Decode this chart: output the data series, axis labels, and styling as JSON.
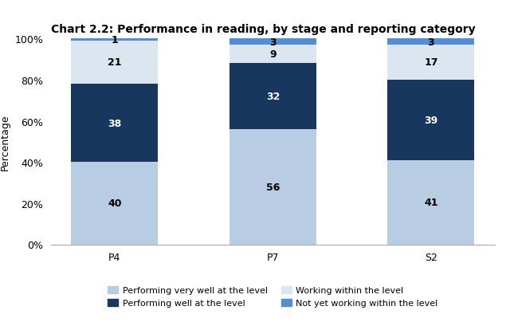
{
  "title": "Chart 2.2: Performance in reading, by stage and reporting category",
  "categories": [
    "P4",
    "P7",
    "S2"
  ],
  "segments": {
    "performing_very_well": [
      40,
      56,
      41
    ],
    "performing_well": [
      38,
      32,
      39
    ],
    "working_within": [
      21,
      9,
      17
    ],
    "not_yet_working": [
      1,
      3,
      3
    ]
  },
  "colors": {
    "performing_very_well": "#b8cce4",
    "performing_well": "#17375e",
    "working_within": "#dce6f1",
    "not_yet_working": "#538dd5"
  },
  "label_colors": {
    "performing_very_well": "black",
    "performing_well": "white",
    "working_within": "black",
    "not_yet_working": "black"
  },
  "legend_labels": [
    "Performing very well at the level",
    "Performing well at the level",
    "Working within the level",
    "Not yet working within the level"
  ],
  "ylabel": "Percentage",
  "ylim": [
    0,
    100
  ],
  "yticks": [
    0,
    20,
    40,
    60,
    80,
    100
  ],
  "ytick_labels": [
    "0%",
    "20%",
    "40%",
    "60%",
    "80%",
    "100%"
  ],
  "background_color": "#ffffff",
  "bar_width": 0.55,
  "title_fontsize": 10,
  "label_fontsize": 9,
  "tick_fontsize": 9,
  "legend_fontsize": 8
}
